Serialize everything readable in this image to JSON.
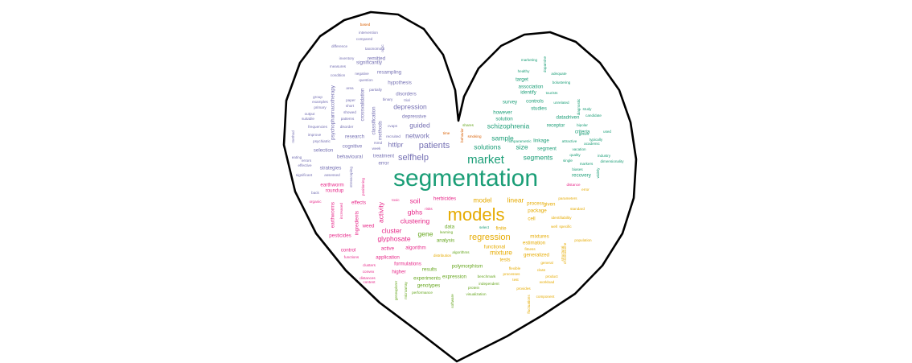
{
  "palette": {
    "green": "#1b9e77",
    "orange": "#d95f02",
    "purple": "#7570b3",
    "pink": "#e7298a",
    "lime": "#66a61e",
    "gold": "#e6ab02",
    "outline": "#000000",
    "background": "#ffffff"
  },
  "words": [
    {
      "text": "segmentation",
      "size": "xl",
      "color": "green"
    },
    {
      "text": "models",
      "size": "l",
      "color": "gold"
    },
    {
      "text": "market",
      "size": "m",
      "color": "green"
    },
    {
      "text": "patients",
      "size": "ms",
      "color": "purple"
    },
    {
      "text": "selfhelp",
      "size": "ms",
      "color": "purple"
    },
    {
      "text": "regression",
      "size": "ms",
      "color": "gold"
    },
    {
      "text": "depression",
      "size": "s",
      "color": "purple"
    },
    {
      "text": "guided",
      "size": "s",
      "color": "purple"
    },
    {
      "text": "network",
      "size": "s",
      "color": "purple"
    },
    {
      "text": "solutions",
      "size": "s",
      "color": "green"
    },
    {
      "text": "schizophrenia",
      "size": "s",
      "color": "green"
    },
    {
      "text": "soil",
      "size": "s",
      "color": "pink"
    },
    {
      "text": "gbhs",
      "size": "s",
      "color": "pink"
    },
    {
      "text": "clustering",
      "size": "s",
      "color": "pink"
    },
    {
      "text": "cluster",
      "size": "s",
      "color": "pink"
    },
    {
      "text": "glyphosate",
      "size": "s",
      "color": "pink"
    },
    {
      "text": "model",
      "size": "s",
      "color": "gold"
    },
    {
      "text": "linear",
      "size": "s",
      "color": "gold"
    },
    {
      "text": "sample",
      "size": "s",
      "color": "green"
    },
    {
      "text": "segments",
      "size": "s",
      "color": "green"
    },
    {
      "text": "size",
      "size": "s",
      "color": "green"
    },
    {
      "text": "mixture",
      "size": "s",
      "color": "gold"
    },
    {
      "text": "gene",
      "size": "s",
      "color": "lime"
    },
    {
      "text": "activity",
      "size": "s",
      "color": "pink"
    },
    {
      "text": "httlpr",
      "size": "s",
      "color": "purple"
    },
    {
      "text": "hypothesis",
      "size": "xs",
      "color": "purple"
    },
    {
      "text": "disorders",
      "size": "xs",
      "color": "purple"
    },
    {
      "text": "depressive",
      "size": "xs",
      "color": "purple"
    },
    {
      "text": "classification",
      "size": "xs",
      "color": "purple"
    },
    {
      "text": "methods",
      "size": "xs",
      "color": "purple"
    },
    {
      "text": "research",
      "size": "xs",
      "color": "purple"
    },
    {
      "text": "cognitive",
      "size": "xs",
      "color": "purple"
    },
    {
      "text": "treatment",
      "size": "xs",
      "color": "purple"
    },
    {
      "text": "error",
      "size": "xs",
      "color": "purple"
    },
    {
      "text": "behavioural",
      "size": "xs",
      "color": "purple"
    },
    {
      "text": "selection",
      "size": "xs",
      "color": "purple"
    },
    {
      "text": "strategies",
      "size": "xs",
      "color": "purple"
    },
    {
      "text": "crossvalidation",
      "size": "xs",
      "color": "purple"
    },
    {
      "text": "psychopharmacotherapy",
      "size": "xs",
      "color": "purple"
    },
    {
      "text": "resampling",
      "size": "xs",
      "color": "purple"
    },
    {
      "text": "significantly",
      "size": "xs",
      "color": "purple"
    },
    {
      "text": "remitted",
      "size": "xs",
      "color": "purple"
    },
    {
      "text": "disorder",
      "size": "xxs",
      "color": "purple"
    },
    {
      "text": "patterns",
      "size": "xxs",
      "color": "purple"
    },
    {
      "text": "cvaps",
      "size": "xxs",
      "color": "purple"
    },
    {
      "text": "rsmd",
      "size": "xxs",
      "color": "purple"
    },
    {
      "text": "stresscoping",
      "size": "xxs",
      "color": "purple"
    },
    {
      "text": "earthworm",
      "size": "xs",
      "color": "pink"
    },
    {
      "text": "roundup",
      "size": "xs",
      "color": "pink"
    },
    {
      "text": "effects",
      "size": "xs",
      "color": "pink"
    },
    {
      "text": "earthworms",
      "size": "xs",
      "color": "pink"
    },
    {
      "text": "ingredients",
      "size": "xs",
      "color": "pink"
    },
    {
      "text": "herbicides",
      "size": "xs",
      "color": "pink"
    },
    {
      "text": "pesticides",
      "size": "xs",
      "color": "pink"
    },
    {
      "text": "weed",
      "size": "xs",
      "color": "pink"
    },
    {
      "text": "control",
      "size": "xs",
      "color": "pink"
    },
    {
      "text": "application",
      "size": "xs",
      "color": "pink"
    },
    {
      "text": "active",
      "size": "xs",
      "color": "pink"
    },
    {
      "text": "algorithm",
      "size": "xs",
      "color": "pink"
    },
    {
      "text": "formulations",
      "size": "xs",
      "color": "pink"
    },
    {
      "text": "higher",
      "size": "xs",
      "color": "pink"
    },
    {
      "text": "toxic",
      "size": "xxs",
      "color": "pink"
    },
    {
      "text": "risks",
      "size": "xxs",
      "color": "pink"
    },
    {
      "text": "survey",
      "size": "xs",
      "color": "green"
    },
    {
      "text": "solution",
      "size": "xs",
      "color": "green"
    },
    {
      "text": "however",
      "size": "xs",
      "color": "green"
    },
    {
      "text": "identify",
      "size": "xs",
      "color": "green"
    },
    {
      "text": "association",
      "size": "xs",
      "color": "green"
    },
    {
      "text": "target",
      "size": "xs",
      "color": "green"
    },
    {
      "text": "studies",
      "size": "xs",
      "color": "green"
    },
    {
      "text": "controls",
      "size": "xs",
      "color": "green"
    },
    {
      "text": "datadriven",
      "size": "xs",
      "color": "green"
    },
    {
      "text": "receptor",
      "size": "xs",
      "color": "green"
    },
    {
      "text": "criteria",
      "size": "xs",
      "color": "green"
    },
    {
      "text": "linkage",
      "size": "xs",
      "color": "green"
    },
    {
      "text": "segment",
      "size": "xs",
      "color": "green"
    },
    {
      "text": "recovery",
      "size": "xs",
      "color": "green"
    },
    {
      "text": "biases",
      "size": "xxs",
      "color": "green"
    },
    {
      "text": "single",
      "size": "xxs",
      "color": "green"
    },
    {
      "text": "vacation",
      "size": "xxs",
      "color": "green"
    },
    {
      "text": "quality",
      "size": "xxs",
      "color": "green"
    },
    {
      "text": "markers",
      "size": "xxs",
      "color": "green"
    },
    {
      "text": "attractive",
      "size": "xxs",
      "color": "green"
    },
    {
      "text": "genes",
      "size": "xxs",
      "color": "green"
    },
    {
      "text": "bipolar",
      "size": "xxs",
      "color": "green"
    },
    {
      "text": "unrelated",
      "size": "xxs",
      "color": "green"
    },
    {
      "text": "study",
      "size": "xxs",
      "color": "green"
    },
    {
      "text": "tourists",
      "size": "xxs",
      "color": "green"
    },
    {
      "text": "bolustering",
      "size": "xxs",
      "color": "green"
    },
    {
      "text": "adequate",
      "size": "xxs",
      "color": "green"
    },
    {
      "text": "healthy",
      "size": "xxs",
      "color": "green"
    },
    {
      "text": "marketing",
      "size": "xxs",
      "color": "green"
    },
    {
      "text": "dopamine",
      "size": "xxs",
      "color": "green"
    },
    {
      "text": "nonparametric",
      "size": "xxs",
      "color": "green"
    },
    {
      "text": "used",
      "size": "xxs",
      "color": "green"
    },
    {
      "text": "typically",
      "size": "xxs",
      "color": "green"
    },
    {
      "text": "academic",
      "size": "xxs",
      "color": "green"
    },
    {
      "text": "industry",
      "size": "xxs",
      "color": "green"
    },
    {
      "text": "dimensionality",
      "size": "xxs",
      "color": "green"
    },
    {
      "text": "diagnostic",
      "size": "xxs",
      "color": "green"
    },
    {
      "text": "candidate",
      "size": "xxs",
      "color": "green"
    },
    {
      "text": "widely",
      "size": "xxs",
      "color": "green"
    },
    {
      "text": "select",
      "size": "xxs",
      "color": "green"
    },
    {
      "text": "finite",
      "size": "xs",
      "color": "gold"
    },
    {
      "text": "cell",
      "size": "xs",
      "color": "gold"
    },
    {
      "text": "package",
      "size": "xs",
      "color": "gold"
    },
    {
      "text": "process",
      "size": "xs",
      "color": "gold"
    },
    {
      "text": "given",
      "size": "xs",
      "color": "gold"
    },
    {
      "text": "well",
      "size": "xxs",
      "color": "gold"
    },
    {
      "text": "mixtures",
      "size": "xs",
      "color": "gold"
    },
    {
      "text": "estimation",
      "size": "xs",
      "color": "gold"
    },
    {
      "text": "functional",
      "size": "xs",
      "color": "gold"
    },
    {
      "text": "tests",
      "size": "xs",
      "color": "gold"
    },
    {
      "text": "generalized",
      "size": "xs",
      "color": "gold"
    },
    {
      "text": "general",
      "size": "xxs",
      "color": "gold"
    },
    {
      "text": "flexible",
      "size": "xxs",
      "color": "gold"
    },
    {
      "text": "class",
      "size": "xxs",
      "color": "gold"
    },
    {
      "text": "processes",
      "size": "xxs",
      "color": "gold"
    },
    {
      "text": "test",
      "size": "xxs",
      "color": "gold"
    },
    {
      "text": "identifiability",
      "size": "xxs",
      "color": "gold"
    },
    {
      "text": "specific",
      "size": "xxs",
      "color": "gold"
    },
    {
      "text": "parameters",
      "size": "xxs",
      "color": "gold"
    },
    {
      "text": "standard",
      "size": "xxs",
      "color": "gold"
    },
    {
      "text": "population",
      "size": "xxs",
      "color": "gold"
    },
    {
      "text": "structural",
      "size": "xxs",
      "color": "gold"
    },
    {
      "text": "chromosome",
      "size": "xxs",
      "color": "gold"
    },
    {
      "text": "product",
      "size": "xxs",
      "color": "gold"
    },
    {
      "text": "workload",
      "size": "xxs",
      "color": "gold"
    },
    {
      "text": "provides",
      "size": "xxs",
      "color": "gold"
    },
    {
      "text": "component",
      "size": "xxs",
      "color": "gold"
    },
    {
      "text": "fluctuations",
      "size": "xxs",
      "color": "gold"
    },
    {
      "text": "fitness",
      "size": "xxs",
      "color": "gold"
    },
    {
      "text": "distribution",
      "size": "xxs",
      "color": "gold"
    },
    {
      "text": "analysis",
      "size": "xs",
      "color": "lime"
    },
    {
      "text": "data",
      "size": "xs",
      "color": "lime"
    },
    {
      "text": "results",
      "size": "xs",
      "color": "lime"
    },
    {
      "text": "experiments",
      "size": "xs",
      "color": "lime"
    },
    {
      "text": "genotypes",
      "size": "xs",
      "color": "lime"
    },
    {
      "text": "polymorphism",
      "size": "xs",
      "color": "lime"
    },
    {
      "text": "expression",
      "size": "xs",
      "color": "lime"
    },
    {
      "text": "benchmark",
      "size": "xxs",
      "color": "lime"
    },
    {
      "text": "algorithms",
      "size": "xxs",
      "color": "lime"
    },
    {
      "text": "learning",
      "size": "xxs",
      "color": "lime"
    },
    {
      "text": "protein",
      "size": "xxs",
      "color": "lime"
    },
    {
      "text": "visualization",
      "size": "xxs",
      "color": "lime"
    },
    {
      "text": "performance",
      "size": "xxs",
      "color": "lime"
    },
    {
      "text": "genexplorer",
      "size": "xxs",
      "color": "lime"
    },
    {
      "text": "microarray",
      "size": "xxs",
      "color": "lime"
    },
    {
      "text": "software",
      "size": "xxs",
      "color": "lime"
    },
    {
      "text": "independent",
      "size": "xxs",
      "color": "lime"
    },
    {
      "text": "shares",
      "size": "xxs",
      "color": "lime"
    },
    {
      "text": "smoking",
      "size": "xxs",
      "color": "orange"
    },
    {
      "text": "time",
      "size": "xxs",
      "color": "orange"
    },
    {
      "text": "behavior",
      "size": "xxs",
      "color": "orange"
    },
    {
      "text": "based",
      "size": "xxs",
      "color": "orange"
    },
    {
      "text": "intervention",
      "size": "xxs",
      "color": "purple"
    },
    {
      "text": "compared",
      "size": "xxs",
      "color": "purple"
    },
    {
      "text": "difference",
      "size": "xxs",
      "color": "purple"
    },
    {
      "text": "taxonomout",
      "size": "xxs",
      "color": "purple"
    },
    {
      "text": "inventory",
      "size": "xxs",
      "color": "purple"
    },
    {
      "text": "measures",
      "size": "xxs",
      "color": "purple"
    },
    {
      "text": "condition",
      "size": "xxs",
      "color": "purple"
    },
    {
      "text": "negative",
      "size": "xxs",
      "color": "purple"
    },
    {
      "text": "question",
      "size": "xxs",
      "color": "purple"
    },
    {
      "text": "area",
      "size": "xxs",
      "color": "purple"
    },
    {
      "text": "partially",
      "size": "xxs",
      "color": "purple"
    },
    {
      "text": "group",
      "size": "xxs",
      "color": "purple"
    },
    {
      "text": "examples",
      "size": "xxs",
      "color": "purple"
    },
    {
      "text": "primary",
      "size": "xxs",
      "color": "purple"
    },
    {
      "text": "paper",
      "size": "xxs",
      "color": "purple"
    },
    {
      "text": "short",
      "size": "xxs",
      "color": "purple"
    },
    {
      "text": "showed",
      "size": "xxs",
      "color": "purple"
    },
    {
      "text": "output",
      "size": "xxs",
      "color": "purple"
    },
    {
      "text": "suitable",
      "size": "xxs",
      "color": "purple"
    },
    {
      "text": "frequencies",
      "size": "xxs",
      "color": "purple"
    },
    {
      "text": "improve",
      "size": "xxs",
      "color": "purple"
    },
    {
      "text": "psychiatric",
      "size": "xxs",
      "color": "purple"
    },
    {
      "text": "eating",
      "size": "xxs",
      "color": "purple"
    },
    {
      "text": "errors",
      "size": "xxs",
      "color": "purple"
    },
    {
      "text": "effective",
      "size": "xxs",
      "color": "purple"
    },
    {
      "text": "significant",
      "size": "xxs",
      "color": "purple"
    },
    {
      "text": "assessed",
      "size": "xxs",
      "color": "purple"
    },
    {
      "text": "method",
      "size": "xxs",
      "color": "purple"
    },
    {
      "text": "recruited",
      "size": "xxs",
      "color": "purple"
    },
    {
      "text": "week",
      "size": "xxs",
      "color": "purple"
    },
    {
      "text": "binary",
      "size": "xxs",
      "color": "purple"
    },
    {
      "text": "trial",
      "size": "xxs",
      "color": "purple"
    },
    {
      "text": "ocsc",
      "size": "xxs",
      "color": "purple"
    },
    {
      "text": "back",
      "size": "xxs",
      "color": "purple"
    },
    {
      "text": "organic",
      "size": "xxs",
      "color": "pink"
    },
    {
      "text": "positioning",
      "size": "xxs",
      "color": "pink"
    },
    {
      "text": "increased",
      "size": "xxs",
      "color": "pink"
    },
    {
      "text": "functions",
      "size": "xxs",
      "color": "pink"
    },
    {
      "text": "clusters",
      "size": "xxs",
      "color": "pink"
    },
    {
      "text": "convex",
      "size": "xxs",
      "color": "pink"
    },
    {
      "text": "distances",
      "size": "xxs",
      "color": "pink"
    },
    {
      "text": "content",
      "size": "xxs",
      "color": "pink"
    },
    {
      "text": "distance",
      "size": "xxs",
      "color": "pink"
    },
    {
      "text": "error",
      "size": "xxs",
      "color": "gold"
    },
    {
      "text": "reception",
      "size": "xxs",
      "color": "gold"
    }
  ]
}
